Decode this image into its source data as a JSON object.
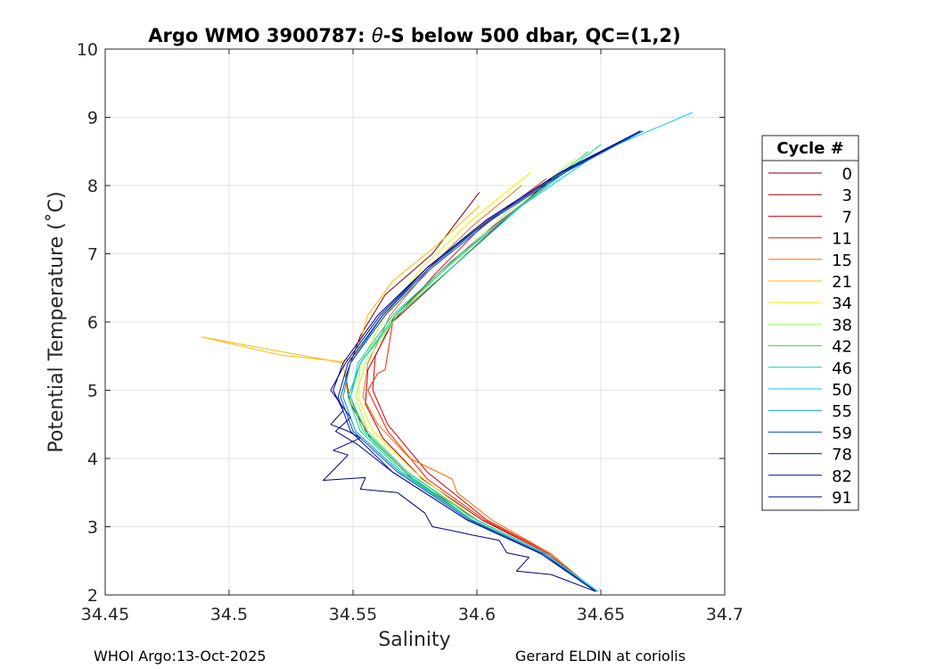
{
  "chart_data": {
    "type": "line",
    "title": "Argo WMO 3900787: θ-S below 500 dbar,  QC=(1,2)",
    "xlabel": "Salinity",
    "ylabel": "Potential Temperature (˚C)",
    "xlim": [
      34.45,
      34.7
    ],
    "ylim": [
      2,
      10
    ],
    "xticks": [
      34.45,
      34.5,
      34.55,
      34.6,
      34.65,
      34.7
    ],
    "xtick_labels": [
      "34.45",
      "34.5",
      "34.55",
      "34.6",
      "34.65",
      "34.7"
    ],
    "yticks": [
      2,
      3,
      4,
      5,
      6,
      7,
      8,
      9,
      10
    ],
    "ytick_labels": [
      "2",
      "3",
      "4",
      "5",
      "6",
      "7",
      "8",
      "9",
      "10"
    ],
    "grid": true,
    "legend_title": "Cycle #",
    "legend_position": "right-outside",
    "series": [
      {
        "name": "0",
        "color": "#7f0000",
        "salinity": [
          34.601,
          34.582,
          34.563,
          34.553,
          34.547,
          34.549,
          34.557,
          34.574,
          34.6,
          34.628,
          34.648
        ],
        "theta": [
          7.9,
          7.0,
          6.4,
          5.8,
          5.2,
          4.8,
          4.3,
          3.7,
          3.1,
          2.6,
          2.05
        ]
      },
      {
        "name": "3",
        "color": "#a30000",
        "salinity": [
          34.63,
          34.605,
          34.584,
          34.566,
          34.556,
          34.555,
          34.562,
          34.578,
          34.602,
          34.629,
          34.648
        ],
        "theta": [
          8.1,
          7.3,
          6.6,
          6.0,
          5.3,
          4.8,
          4.3,
          3.7,
          3.1,
          2.6,
          2.05
        ]
      },
      {
        "name": "7",
        "color": "#d30000",
        "salinity": [
          34.628,
          34.603,
          34.584,
          34.567,
          34.559,
          34.558,
          34.564,
          34.58,
          34.604,
          34.63,
          34.648
        ],
        "theta": [
          8.0,
          7.3,
          6.7,
          6.1,
          5.5,
          5.0,
          4.5,
          3.8,
          3.1,
          2.6,
          2.05
        ]
      },
      {
        "name": "11",
        "color": "#ff1c00",
        "salinity": [
          34.628,
          34.602,
          34.583,
          34.566,
          34.563,
          34.56,
          34.556,
          34.564,
          34.58,
          34.603,
          34.629,
          34.648
        ],
        "theta": [
          8.1,
          7.4,
          6.7,
          6.0,
          5.3,
          5.25,
          5.0,
          4.4,
          3.7,
          3.1,
          2.6,
          2.05
        ]
      },
      {
        "name": "15",
        "color": "#ff6a00",
        "salinity": [
          34.618,
          34.598,
          34.581,
          34.565,
          34.556,
          34.554,
          34.56,
          34.573,
          34.59,
          34.592,
          34.606,
          34.63,
          34.648
        ],
        "theta": [
          8.0,
          7.4,
          6.8,
          6.1,
          5.4,
          4.9,
          4.5,
          4.0,
          3.7,
          3.5,
          3.1,
          2.6,
          2.05
        ]
      },
      {
        "name": "21",
        "color": "#ffb700",
        "salinity": [
          34.601,
          34.583,
          34.566,
          34.556,
          34.551,
          34.545,
          34.52,
          34.489,
          34.546,
          34.548,
          34.556,
          34.572,
          34.6,
          34.628,
          34.648
        ],
        "theta": [
          7.7,
          7.1,
          6.6,
          6.1,
          5.5,
          5.42,
          5.52,
          5.78,
          5.4,
          4.9,
          4.4,
          3.8,
          3.1,
          2.6,
          2.05
        ]
      },
      {
        "name": "34",
        "color": "#e8f200",
        "salinity": [
          34.622,
          34.598,
          34.578,
          34.563,
          34.553,
          34.552,
          34.558,
          34.575,
          34.6,
          34.628,
          34.648
        ],
        "theta": [
          8.2,
          7.5,
          6.8,
          6.1,
          5.4,
          4.9,
          4.4,
          3.8,
          3.1,
          2.6,
          2.05
        ]
      },
      {
        "name": "38",
        "color": "#9aff5e",
        "salinity": [
          34.64,
          34.612,
          34.588,
          34.568,
          34.555,
          34.551,
          34.556,
          34.572,
          34.599,
          34.628,
          34.648
        ],
        "theta": [
          8.4,
          7.6,
          6.8,
          6.1,
          5.4,
          4.9,
          4.4,
          3.8,
          3.1,
          2.6,
          2.05
        ]
      },
      {
        "name": "42",
        "color": "#2ce02c",
        "salinity": [
          34.645,
          34.614,
          34.588,
          34.567,
          34.553,
          34.549,
          34.554,
          34.571,
          34.598,
          34.627,
          34.648
        ],
        "theta": [
          8.5,
          7.6,
          6.8,
          6.1,
          5.4,
          4.9,
          4.4,
          3.8,
          3.1,
          2.6,
          2.05
        ]
      },
      {
        "name": "46",
        "color": "#00d9a8",
        "salinity": [
          34.65,
          34.618,
          34.59,
          34.568,
          34.553,
          34.548,
          34.553,
          34.57,
          34.598,
          34.627,
          34.649
        ],
        "theta": [
          8.6,
          7.7,
          6.8,
          6.1,
          5.4,
          4.9,
          4.4,
          3.8,
          3.1,
          2.6,
          2.05
        ]
      },
      {
        "name": "50",
        "color": "#00c4ff",
        "salinity": [
          34.687,
          34.65,
          34.618,
          34.59,
          34.566,
          34.552,
          34.549,
          34.555,
          34.572,
          34.6,
          34.628,
          34.649
        ],
        "theta": [
          9.07,
          8.5,
          7.7,
          6.9,
          6.1,
          5.4,
          4.9,
          4.4,
          3.8,
          3.1,
          2.6,
          2.05
        ]
      },
      {
        "name": "55",
        "color": "#0096c8",
        "salinity": [
          34.667,
          34.635,
          34.605,
          34.58,
          34.562,
          34.549,
          34.546,
          34.551,
          34.569,
          34.598,
          34.627,
          34.648
        ],
        "theta": [
          8.8,
          8.2,
          7.5,
          6.8,
          6.1,
          5.4,
          4.9,
          4.4,
          3.8,
          3.1,
          2.6,
          2.05
        ]
      },
      {
        "name": "59",
        "color": "#0050c8",
        "salinity": [
          34.667,
          34.636,
          34.606,
          34.582,
          34.563,
          34.549,
          34.545,
          34.55,
          34.568,
          34.597,
          34.627,
          34.648
        ],
        "theta": [
          8.8,
          8.2,
          7.5,
          6.8,
          6.1,
          5.4,
          4.9,
          4.4,
          3.8,
          3.1,
          2.6,
          2.05
        ]
      },
      {
        "name": "78",
        "color": "#0014a0",
        "salinity": [
          34.666,
          34.635,
          34.605,
          34.581,
          34.562,
          34.548,
          34.544,
          34.549,
          34.566,
          34.596,
          34.626,
          34.648
        ],
        "theta": [
          8.8,
          8.2,
          7.5,
          6.8,
          6.1,
          5.4,
          4.9,
          4.4,
          3.8,
          3.1,
          2.6,
          2.05
        ]
      },
      {
        "name": "82",
        "color": "#000a8c",
        "salinity": [
          34.666,
          34.634,
          34.604,
          34.58,
          34.561,
          34.547,
          34.541,
          34.549,
          34.543,
          34.552,
          34.566,
          34.596,
          34.626,
          34.648
        ],
        "theta": [
          8.8,
          8.2,
          7.5,
          6.8,
          6.1,
          5.4,
          5.0,
          4.6,
          4.4,
          4.2,
          3.8,
          3.1,
          2.6,
          2.05
        ]
      },
      {
        "name": "91",
        "color": "#000080",
        "salinity": [
          34.666,
          34.634,
          34.604,
          34.58,
          34.56,
          34.546,
          34.542,
          34.546,
          34.541,
          34.548,
          34.553,
          34.542,
          34.548,
          34.538,
          34.555,
          34.553,
          34.568,
          34.579,
          34.582,
          34.593,
          34.598,
          34.609,
          34.612,
          34.621,
          34.616,
          34.63,
          34.648
        ],
        "theta": [
          8.8,
          8.2,
          7.5,
          6.8,
          6.1,
          5.4,
          5.0,
          4.7,
          4.5,
          4.4,
          4.3,
          4.12,
          4.05,
          3.68,
          3.72,
          3.55,
          3.5,
          3.2,
          3.0,
          2.92,
          2.88,
          2.8,
          2.62,
          2.55,
          2.35,
          2.3,
          2.05
        ]
      }
    ]
  },
  "footer": {
    "left": "WHOI Argo:13-Oct-2025",
    "right": "Gerard ELDIN at coriolis"
  }
}
